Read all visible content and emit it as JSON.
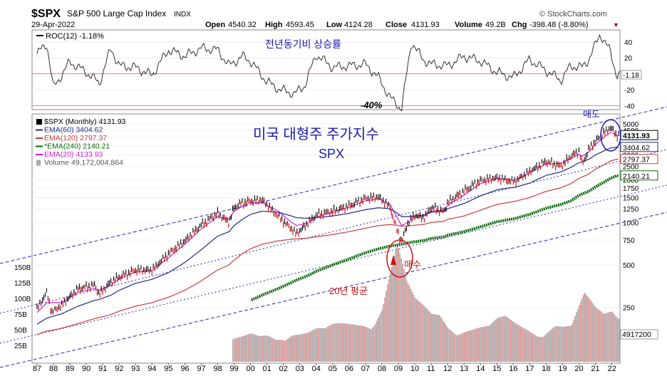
{
  "header": {
    "symbol": "$SPX",
    "name": "S&P 500 Large Cap Index",
    "exchange": "INDX",
    "date": "29-Apr-2022",
    "brand": "© StockCharts.com",
    "open_label": "Open",
    "open": "4540.32",
    "high_label": "High",
    "high": "4593.45",
    "low_label": "Low",
    "low": "4124.28",
    "close_label": "Close",
    "close": "4131.93",
    "volume_label": "Volume",
    "volume": "49.2B",
    "chg_label": "Chg",
    "chg": "-398.48 (-8.80%)",
    "chg_arrow": "▼"
  },
  "roc_panel": {
    "legend": "ROC(12) -1.18%",
    "annotation": "전년동기비 상승률",
    "low_annotation": "-40%",
    "current_value": "-1.18"
  },
  "price_panel": {
    "legend": [
      {
        "text": "$SPX (Monthly) 4131.93",
        "color": "#000000",
        "key": "price"
      },
      {
        "text": "EMA(60) 3404.62",
        "color": "#1f2a8a",
        "key": "ema60"
      },
      {
        "text": "EMA(120) 2797.37",
        "color": "#d03a3a",
        "key": "ema120"
      },
      {
        "text": "*EMA(240) 2140.21",
        "color": "#0a6a0a",
        "key": "ema240"
      },
      {
        "text": "EMA(20) 4133.93",
        "color": "#d020d0",
        "key": "ema20"
      },
      {
        "text": "Volume 49,172,004,864",
        "color": "#555555",
        "key": "volume"
      }
    ],
    "title_line1": "미국 대형주 주가지수",
    "title_line2": "SPX",
    "sell_label": "매도",
    "buy_label": "매수",
    "ma_label": "20년 평균",
    "price_tag": "4131.93",
    "ema60_tag": "3404.62",
    "ema120_tag": "2797.37",
    "ema240_tag": "2140.21",
    "volume_tag": "4917200"
  },
  "colors": {
    "price": "#000000",
    "price_down": "#cc0000",
    "ema20": "#d020d0",
    "ema60": "#1f2a8a",
    "ema120": "#d03a3a",
    "ema240": "#0a6a0a",
    "volume_up": "#a8a8a8",
    "volume_down": "#e09090",
    "channel": "#3a3ad0",
    "annotation_blue": "#1a1ab0",
    "annotation_red": "#d01010",
    "roc_line": "#303030",
    "zero_line": "#e08080"
  },
  "chart_data": [
    {
      "type": "line",
      "title": "ROC(12)",
      "x": [
        1987,
        1987.6,
        1988,
        1989,
        1990,
        1990.8,
        1991.5,
        1992,
        1993,
        1994,
        1995,
        1996,
        1997,
        1998,
        1998.7,
        1999.5,
        2000,
        2001,
        2001.8,
        2002.7,
        2003.3,
        2004,
        2005,
        2006,
        2007,
        2007.8,
        2008.5,
        2009.2,
        2009.8,
        2010.5,
        2011,
        2012,
        2013,
        2014,
        2015,
        2016,
        2017,
        2018,
        2018.9,
        2019.5,
        2020.2,
        2020.6,
        2021.3,
        2021.9,
        2022.3
      ],
      "values": [
        25,
        38,
        -18,
        15,
        2,
        -12,
        32,
        10,
        8,
        -2,
        30,
        22,
        32,
        30,
        10,
        22,
        16,
        -10,
        -20,
        -25,
        -15,
        24,
        8,
        10,
        12,
        -5,
        -30,
        -44,
        40,
        18,
        12,
        10,
        22,
        16,
        2,
        -5,
        18,
        4,
        -8,
        10,
        8,
        18,
        50,
        28,
        -1.18
      ],
      "ylim": [
        -45,
        55
      ],
      "yticks": [
        -40,
        -20,
        20,
        40
      ],
      "series_name": "ROC(12)"
    },
    {
      "type": "line",
      "title": "$SPX (Monthly)",
      "scale": "log",
      "x": [
        1987,
        1987.6,
        1987.9,
        1988.5,
        1989.5,
        1990.5,
        1990.8,
        1991.5,
        1992,
        1993,
        1994,
        1995,
        1996,
        1997,
        1998,
        1998.7,
        1999,
        1999.5,
        2000,
        2000.7,
        2001.7,
        2002.5,
        2002.8,
        2003.5,
        2004,
        2005,
        2006,
        2007,
        2007.8,
        2008.5,
        2008.9,
        2009.2,
        2009.6,
        2010,
        2010.6,
        2011,
        2011.8,
        2012,
        2013,
        2014,
        2015,
        2015.8,
        2016.1,
        2017,
        2018,
        2018.9,
        2019.5,
        2020,
        2020.2,
        2020.6,
        2021,
        2021.5,
        2021.95,
        2022.3
      ],
      "series": [
        {
          "name": "SPX",
          "values": [
            245,
            320,
            230,
            260,
            340,
            360,
            310,
            380,
            410,
            460,
            460,
            600,
            740,
            960,
            1160,
            1000,
            1280,
            1380,
            1420,
            1450,
            1100,
            900,
            830,
            990,
            1130,
            1200,
            1310,
            1480,
            1520,
            1280,
            900,
            730,
            1000,
            1120,
            1080,
            1280,
            1190,
            1380,
            1670,
            1980,
            2070,
            1970,
            1950,
            2300,
            2700,
            2500,
            2940,
            3200,
            2600,
            3300,
            3750,
            4300,
            4700,
            4131.93
          ]
        },
        {
          "name": "EMA(20)",
          "values": [
            230,
            270,
            270,
            270,
            320,
            340,
            330,
            360,
            400,
            445,
            455,
            560,
            700,
            900,
            1100,
            1050,
            1200,
            1300,
            1380,
            1380,
            1200,
            1000,
            950,
            990,
            1090,
            1180,
            1280,
            1420,
            1470,
            1340,
            1100,
            950,
            1000,
            1080,
            1110,
            1200,
            1220,
            1320,
            1560,
            1880,
            2040,
            2000,
            1990,
            2240,
            2600,
            2620,
            2820,
            3050,
            2950,
            3150,
            3550,
            4000,
            4350,
            4133.93
          ]
        },
        {
          "name": "EMA(60)",
          "values": [
            190,
            210,
            215,
            225,
            255,
            280,
            285,
            305,
            330,
            370,
            395,
            440,
            520,
            640,
            800,
            860,
            950,
            1050,
            1140,
            1200,
            1180,
            1110,
            1080,
            1070,
            1080,
            1110,
            1160,
            1230,
            1270,
            1250,
            1170,
            1100,
            1100,
            1110,
            1130,
            1180,
            1200,
            1250,
            1360,
            1540,
            1700,
            1760,
            1770,
            1900,
            2150,
            2280,
            2450,
            2650,
            2680,
            2800,
            3000,
            3200,
            3380,
            3404.62
          ]
        },
        {
          "name": "EMA(120)",
          "values": [
            160,
            170,
            172,
            178,
            192,
            208,
            212,
            222,
            235,
            255,
            270,
            295,
            330,
            385,
            460,
            500,
            540,
            600,
            650,
            700,
            740,
            760,
            765,
            775,
            790,
            820,
            860,
            910,
            950,
            965,
            955,
            940,
            945,
            955,
            970,
            1000,
            1020,
            1050,
            1110,
            1220,
            1340,
            1390,
            1410,
            1500,
            1660,
            1760,
            1880,
            2050,
            2100,
            2200,
            2380,
            2560,
            2730,
            2797.37
          ]
        },
        {
          "name": "EMA(240)",
          "values": [
            null,
            null,
            null,
            null,
            null,
            null,
            null,
            null,
            null,
            null,
            null,
            null,
            null,
            null,
            null,
            null,
            null,
            null,
            280,
            305,
            340,
            375,
            390,
            420,
            450,
            500,
            550,
            610,
            650,
            680,
            690,
            700,
            715,
            730,
            745,
            770,
            790,
            810,
            860,
            930,
            1010,
            1050,
            1065,
            1140,
            1260,
            1340,
            1420,
            1550,
            1590,
            1660,
            1780,
            1920,
            2060,
            2140.21
          ]
        }
      ],
      "yticks": [
        250,
        500,
        750,
        1000,
        1250,
        1500,
        1750,
        2000,
        2500,
        3000,
        3500,
        4000,
        4500,
        5000
      ],
      "xticks": [
        "87",
        "88",
        "89",
        "90",
        "91",
        "92",
        "93",
        "94",
        "95",
        "96",
        "97",
        "98",
        "99",
        "00",
        "01",
        "02",
        "03",
        "04",
        "05",
        "06",
        "07",
        "08",
        "09",
        "10",
        "11",
        "12",
        "13",
        "14",
        "15",
        "16",
        "17",
        "18",
        "19",
        "20",
        "21",
        "22"
      ],
      "volume": {
        "name": "Volume (billions)",
        "x": [
          1998.9,
          1999.5,
          2000,
          2000.5,
          2001,
          2001.5,
          2002,
          2002.5,
          2003,
          2003.5,
          2004,
          2004.5,
          2005,
          2005.5,
          2006,
          2006.5,
          2007,
          2007.5,
          2008,
          2008.3,
          2008.6,
          2008.9,
          2009.2,
          2009.5,
          2010,
          2010.5,
          2011,
          2011.5,
          2012,
          2012.5,
          2013,
          2013.5,
          2014,
          2014.5,
          2015,
          2015.5,
          2016,
          2016.5,
          2017,
          2017.5,
          2018,
          2018.5,
          2019,
          2019.5,
          2020,
          2020.3,
          2020.6,
          2021,
          2021.5,
          2022,
          2022.3
        ],
        "values": [
          20,
          22,
          25,
          24,
          27,
          26,
          30,
          32,
          29,
          28,
          30,
          29,
          33,
          35,
          37,
          40,
          45,
          48,
          60,
          80,
          95,
          110,
          90,
          70,
          55,
          50,
          45,
          48,
          40,
          38,
          36,
          34,
          33,
          32,
          38,
          40,
          36,
          34,
          33,
          32,
          38,
          40,
          35,
          33,
          50,
          60,
          55,
          48,
          45,
          52,
          49.2
        ],
        "yticks_labels": [
          "25B",
          "50B",
          "75B",
          "100B",
          "125B",
          "150B"
        ]
      }
    }
  ]
}
